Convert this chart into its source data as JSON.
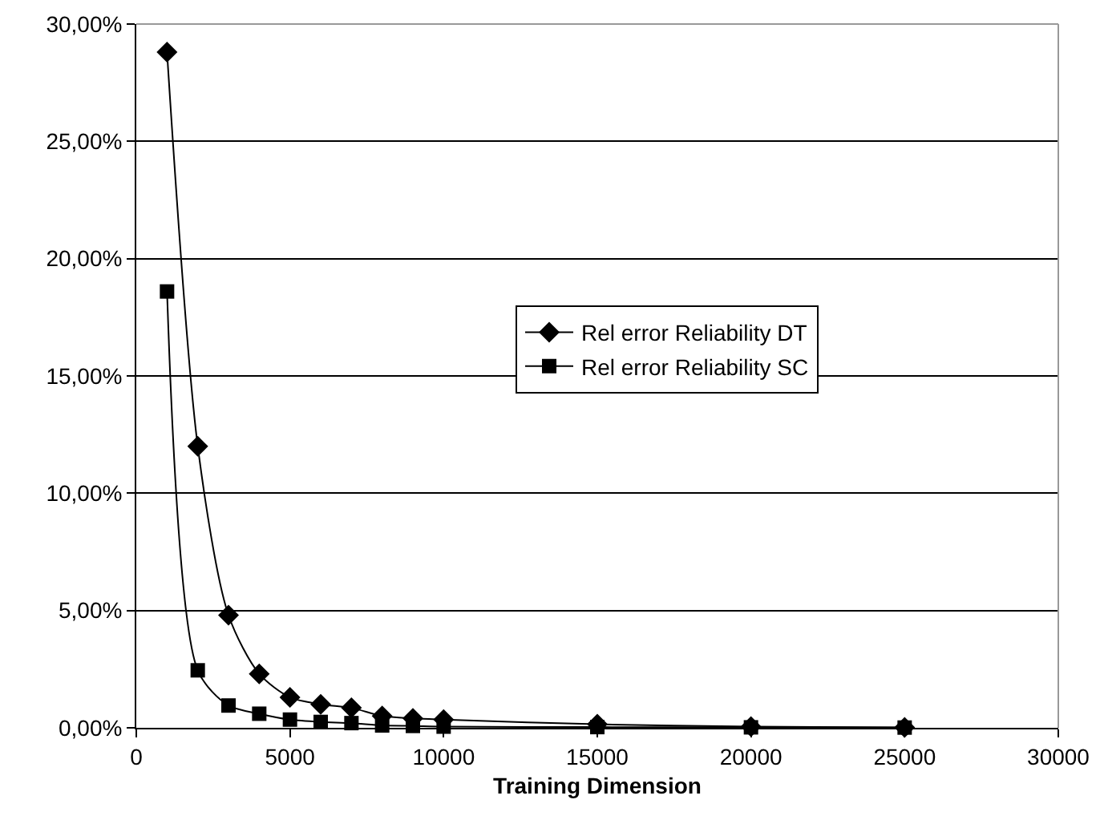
{
  "chart_data": {
    "type": "line",
    "xlabel": "Training Dimension",
    "x": [
      1000,
      2000,
      3000,
      4000,
      5000,
      6000,
      7000,
      8000,
      9000,
      10000,
      15000,
      20000,
      25000
    ],
    "series": [
      {
        "name": "Rel error Reliability DT",
        "color": "#000000",
        "marker": "diamond",
        "values": [
          28.8,
          12.0,
          4.8,
          2.3,
          1.3,
          1.0,
          0.85,
          0.5,
          0.4,
          0.35,
          0.15,
          0.05,
          0.02
        ]
      },
      {
        "name": "Rel error Reliability SC",
        "color": "#000000",
        "marker": "square",
        "values": [
          18.6,
          2.45,
          0.95,
          0.6,
          0.35,
          0.25,
          0.2,
          0.1,
          0.08,
          0.05,
          0.03,
          0.02,
          0.01
        ]
      }
    ],
    "xlim": [
      0,
      30000
    ],
    "xticks": [
      0,
      5000,
      10000,
      15000,
      20000,
      25000,
      30000
    ],
    "ylim": [
      0,
      30
    ],
    "yticks": [
      {
        "value": 0,
        "label": "0,00%"
      },
      {
        "value": 5,
        "label": "5,00%"
      },
      {
        "value": 10,
        "label": "10,00%"
      },
      {
        "value": 15,
        "label": "15,00%"
      },
      {
        "value": 20,
        "label": "20,00%"
      },
      {
        "value": 25,
        "label": "25,00%"
      },
      {
        "value": 30,
        "label": "30,00%"
      }
    ],
    "grid": "y",
    "legend": "right",
    "line_style": "solid"
  }
}
